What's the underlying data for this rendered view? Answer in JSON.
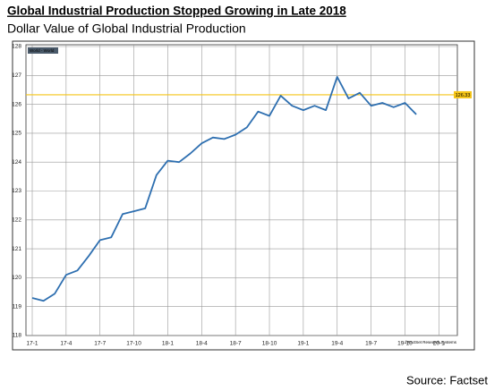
{
  "chart_data": {
    "type": "line",
    "title": "Global Industrial Production Stopped Growing in Late 2018",
    "subtitle": "Dollar Value of Global Industrial Production",
    "source": "Source: Factset",
    "copyright": "©FactSet Research Systems",
    "categories": [
      "17-1",
      null,
      null,
      "17-4",
      null,
      null,
      "17-7",
      null,
      null,
      "17-10",
      null,
      null,
      "18-1",
      null,
      null,
      "18-4",
      null,
      null,
      "18-7",
      null,
      null,
      "18-10",
      null,
      null,
      "19-1",
      null,
      null,
      "19-4",
      null,
      null,
      "19-7",
      null,
      null,
      "19-10",
      null,
      null,
      "20-1",
      null,
      null
    ],
    "series": [
      {
        "name": "World - World",
        "color": "#2e6fb0",
        "values": [
          119.3,
          119.2,
          119.45,
          120.1,
          120.25,
          120.75,
          121.3,
          121.4,
          122.2,
          122.3,
          122.4,
          123.55,
          124.05,
          124.0,
          124.3,
          124.65,
          124.85,
          124.8,
          124.95,
          125.2,
          125.75,
          125.6,
          126.3,
          125.95,
          125.8,
          125.95,
          125.8,
          126.95,
          126.2,
          126.4,
          125.95,
          126.05,
          125.9,
          126.05,
          125.65,
          null,
          null,
          null,
          null
        ]
      }
    ],
    "reference_line": {
      "value": 126.33,
      "color": "#f5c518"
    },
    "ylim": [
      118,
      128
    ],
    "yticks": [
      118,
      119,
      120,
      121,
      122,
      123,
      124,
      125,
      126,
      127,
      128
    ],
    "grid": true
  }
}
